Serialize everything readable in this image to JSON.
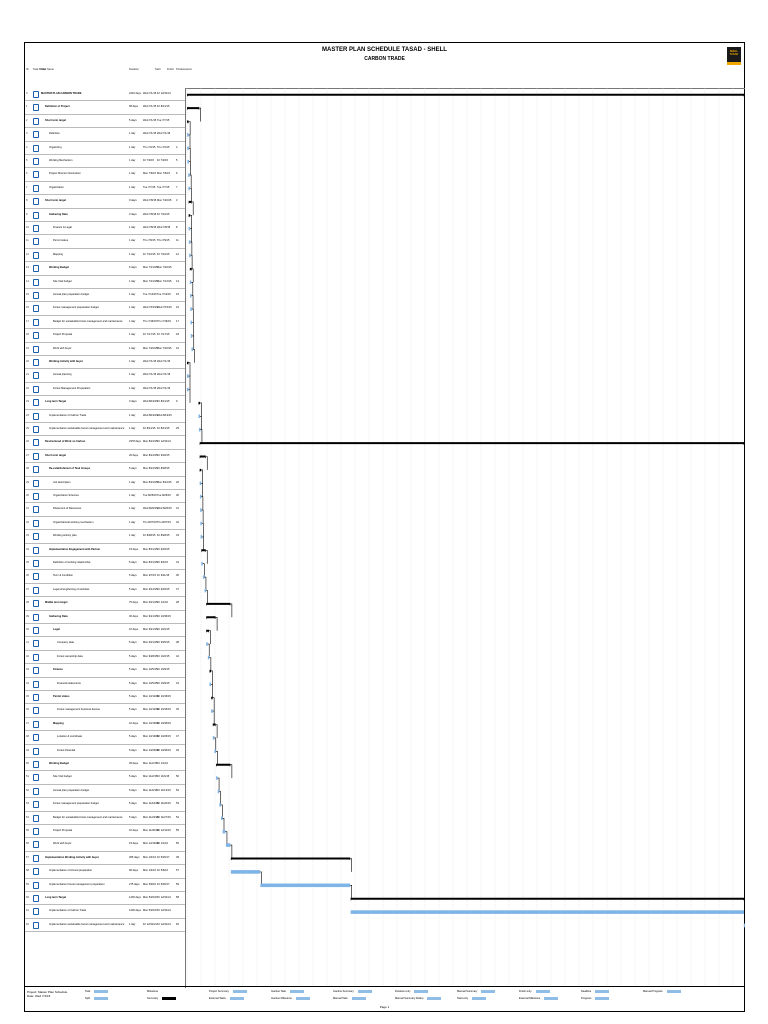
{
  "header": {
    "title": "MASTER PLAN SCHEDULE TASAD - SHELL",
    "subtitle": "CARBON TRADE",
    "logo_text": "SHELL TASAD"
  },
  "columns": {
    "id": "ID",
    "mode": "Task Mode",
    "name": "Task Name",
    "duration": "Duration",
    "start": "Start",
    "finish": "Finish",
    "pred": "Predecessors"
  },
  "tasks": [
    {
      "name": "MASTER PLAN CARBON TRADE",
      "level": 0,
      "bold": true,
      "dur": "2416 days",
      "start": "Wed 7/1/15",
      "finish": "Fri 12/31/21",
      "pred": ""
    },
    {
      "name": "Definition of Project",
      "level": 1,
      "bold": true,
      "dur": "38 days",
      "start": "Wed 7/1/15",
      "finish": "Fri 8/21/15",
      "pred": ""
    },
    {
      "name": "Short term target",
      "level": 1,
      "bold": true,
      "dur": "5 days",
      "start": "Wed 7/1/15",
      "finish": "Tue 7/7/15",
      "pred": ""
    },
    {
      "name": "Definition",
      "level": 2,
      "bold": false,
      "dur": "1 day",
      "start": "Wed 7/1/15",
      "finish": "Wed 7/1/15",
      "pred": ""
    },
    {
      "name": "Organizing",
      "level": 2,
      "bold": false,
      "dur": "1 day",
      "start": "Thu 7/2/15",
      "finish": "Thu 7/2/15",
      "pred": "4"
    },
    {
      "name": "Working Mechanism",
      "level": 2,
      "bold": false,
      "dur": "1 day",
      "start": "Fri 7/3/15",
      "finish": "Fri 7/3/15",
      "pred": "5"
    },
    {
      "name": "Project Director Nomination",
      "level": 2,
      "bold": false,
      "dur": "1 day",
      "start": "Mon 7/6/15",
      "finish": "Mon 7/6/15",
      "pred": "6"
    },
    {
      "name": "Organization",
      "level": 2,
      "bold": false,
      "dur": "1 day",
      "start": "Tue 7/7/15",
      "finish": "Tue 7/7/15",
      "pred": "7"
    },
    {
      "name": "Short term target",
      "level": 1,
      "bold": true,
      "dur": "9 days",
      "start": "Wed 7/8/15",
      "finish": "Mon 7/20/15",
      "pred": "3"
    },
    {
      "name": "Gathering Data",
      "level": 2,
      "bold": true,
      "dur": "3 days",
      "start": "Wed 7/8/15",
      "finish": "Fri 7/10/15",
      "pred": ""
    },
    {
      "name": "Finance & Legal",
      "level": 3,
      "bold": false,
      "dur": "1 day",
      "start": "Wed 7/8/15",
      "finish": "Wed 7/8/15",
      "pred": "8"
    },
    {
      "name": "Permit status",
      "level": 3,
      "bold": false,
      "dur": "1 day",
      "start": "Thu 7/9/15",
      "finish": "Thu 7/9/15",
      "pred": "11"
    },
    {
      "name": "Mapping",
      "level": 3,
      "bold": false,
      "dur": "1 day",
      "start": "Fri 7/10/15",
      "finish": "Fri 7/10/15",
      "pred": "12"
    },
    {
      "name": "Working Budget",
      "level": 2,
      "bold": true,
      "dur": "6 days",
      "start": "Mon 7/13/15",
      "finish": "Mon 7/20/15",
      "pred": ""
    },
    {
      "name": "Site Visit budget",
      "level": 3,
      "bold": false,
      "dur": "1 day",
      "start": "Mon 7/13/15",
      "finish": "Mon 7/13/15",
      "pred": "13"
    },
    {
      "name": "Annual plan preparation budget",
      "level": 3,
      "bold": false,
      "dur": "1 day",
      "start": "Tue 7/14/15",
      "finish": "Tue 7/14/15",
      "pred": "15"
    },
    {
      "name": "Forest management preparation budget",
      "level": 3,
      "bold": false,
      "dur": "1 day",
      "start": "Wed 7/15/15",
      "finish": "Wed 7/15/15",
      "pred": "16"
    },
    {
      "name": "Budget for sustainable forest management and maintenance",
      "level": 3,
      "bold": false,
      "dur": "1 day",
      "start": "Thu 7/16/15",
      "finish": "Thu 7/16/15",
      "pred": "17"
    },
    {
      "name": "Project Proposal",
      "level": 3,
      "bold": false,
      "dur": "1 day",
      "start": "Fri 7/17/15",
      "finish": "Fri 7/17/15",
      "pred": "18"
    },
    {
      "name": "Work with buyer",
      "level": 3,
      "bold": false,
      "dur": "1 day",
      "start": "Mon 7/20/15",
      "finish": "Mon 7/20/15",
      "pred": "19"
    },
    {
      "name": "Working Activity with buyer",
      "level": 2,
      "bold": true,
      "dur": "1 day",
      "start": "Wed 7/1/15",
      "finish": "Wed 7/1/15",
      "pred": ""
    },
    {
      "name": "Annual planning",
      "level": 3,
      "bold": false,
      "dur": "1 day",
      "start": "Wed 7/1/15",
      "finish": "Wed 7/1/15",
      "pred": ""
    },
    {
      "name": "Forest Management Preparation",
      "level": 3,
      "bold": false,
      "dur": "1 day",
      "start": "Wed 7/1/15",
      "finish": "Wed 7/1/15",
      "pred": ""
    },
    {
      "name": "Long term Target",
      "level": 1,
      "bold": true,
      "dur": "3 days",
      "start": "Wed 8/19/15",
      "finish": "Fri 8/21/15",
      "pred": "9"
    },
    {
      "name": "Implementation of Carbon Trade",
      "level": 2,
      "bold": false,
      "dur": "1 day",
      "start": "Wed 8/19/15",
      "finish": "Wed 8/19/15",
      "pred": ""
    },
    {
      "name": "Implementation sustainable forest management and maintenance",
      "level": 2,
      "bold": false,
      "dur": "1 day",
      "start": "Fri 8/21/15",
      "finish": "Fri 8/21/15",
      "pred": "25"
    },
    {
      "name": "Restructured of Work on Carbon",
      "level": 1,
      "bold": true,
      "dur": "2378 days",
      "start": "Mon 8/24/15",
      "finish": "Fri 12/31/21",
      "pred": ""
    },
    {
      "name": "Short term target",
      "level": 1,
      "bold": true,
      "dur": "20 days",
      "start": "Mon 8/24/15",
      "finish": "Fri 9/18/15",
      "pred": ""
    },
    {
      "name": "Re-establishment of Task Groups",
      "level": 2,
      "bold": true,
      "dur": "5 days",
      "start": "Mon 8/24/15",
      "finish": "Fri 8/28/15",
      "pred": ""
    },
    {
      "name": "Job description",
      "level": 3,
      "bold": false,
      "dur": "1 day",
      "start": "Mon 8/24/15",
      "finish": "Mon 8/24/15",
      "pred": "26"
    },
    {
      "name": "Organization Structure",
      "level": 3,
      "bold": false,
      "dur": "1 day",
      "start": "Tue 8/25/15",
      "finish": "Tue 8/25/15",
      "pred": "30"
    },
    {
      "name": "Placement of Resources",
      "level": 3,
      "bold": false,
      "dur": "1 day",
      "start": "Wed 8/26/15",
      "finish": "Wed 8/26/15",
      "pred": "31"
    },
    {
      "name": "Organizational working mechanism",
      "level": 3,
      "bold": false,
      "dur": "1 day",
      "start": "Thu 8/27/15",
      "finish": "Thu 8/27/15",
      "pred": "32"
    },
    {
      "name": "Working activity plan",
      "level": 3,
      "bold": false,
      "dur": "1 day",
      "start": "Fri 8/28/15",
      "finish": "Fri 8/28/15",
      "pred": "33"
    },
    {
      "name": "Implementation Engagement with Partner",
      "level": 2,
      "bold": true,
      "dur": "15 days",
      "start": "Mon 8/31/15",
      "finish": "Fri 9/18/15",
      "pred": ""
    },
    {
      "name": "Definition of working relationship",
      "level": 3,
      "bold": false,
      "dur": "5 days",
      "start": "Mon 8/31/15",
      "finish": "Fri 9/4/15",
      "pred": "34"
    },
    {
      "name": "Term & Condition",
      "level": 3,
      "bold": false,
      "dur": "5 days",
      "start": "Mon 9/7/15",
      "finish": "Fri 9/11/15",
      "pred": "36"
    },
    {
      "name": "Legal strengthening of activities",
      "level": 3,
      "bold": false,
      "dur": "5 days",
      "start": "Mon 9/14/15",
      "finish": "Fri 9/18/15",
      "pred": "37"
    },
    {
      "name": "Middle term target",
      "level": 1,
      "bold": true,
      "dur": "75 days",
      "start": "Mon 9/21/15",
      "finish": "Fri 1/1/16",
      "pred": "28"
    },
    {
      "name": "Gathering Data",
      "level": 2,
      "bold": true,
      "dur": "30 days",
      "start": "Mon 9/21/15",
      "finish": "Fri 10/30/15",
      "pred": ""
    },
    {
      "name": "Legal",
      "level": 3,
      "bold": true,
      "dur": "10 days",
      "start": "Mon 9/21/15",
      "finish": "Fri 10/2/15",
      "pred": ""
    },
    {
      "name": "Company data",
      "level": 4,
      "bold": false,
      "dur": "5 days",
      "start": "Mon 9/21/15",
      "finish": "Fri 9/25/15",
      "pred": "38"
    },
    {
      "name": "Forest ownership data",
      "level": 4,
      "bold": false,
      "dur": "5 days",
      "start": "Mon 9/28/15",
      "finish": "Fri 10/2/15",
      "pred": "42"
    },
    {
      "name": "Finance",
      "level": 3,
      "bold": true,
      "dur": "5 days",
      "start": "Mon 10/5/15",
      "finish": "Fri 10/9/15",
      "pred": ""
    },
    {
      "name": "Financial statements",
      "level": 4,
      "bold": false,
      "dur": "5 days",
      "start": "Mon 10/5/15",
      "finish": "Fri 10/9/15",
      "pred": "43"
    },
    {
      "name": "Permit status",
      "level": 3,
      "bold": true,
      "dur": "5 days",
      "start": "Mon 10/12/15",
      "finish": "Fri 10/16/15",
      "pred": ""
    },
    {
      "name": "Forest management business license",
      "level": 4,
      "bold": false,
      "dur": "5 days",
      "start": "Mon 10/12/15",
      "finish": "Fri 10/16/15",
      "pred": "45"
    },
    {
      "name": "Mapping",
      "level": 3,
      "bold": true,
      "dur": "10 days",
      "start": "Mon 10/19/15",
      "finish": "Fri 10/30/15",
      "pred": ""
    },
    {
      "name": "Location & coordinate",
      "level": 4,
      "bold": false,
      "dur": "5 days",
      "start": "Mon 10/19/15",
      "finish": "Fri 10/23/15",
      "pred": "47"
    },
    {
      "name": "Forest Potential",
      "level": 4,
      "bold": false,
      "dur": "5 days",
      "start": "Mon 10/26/15",
      "finish": "Fri 10/30/15",
      "pred": "49"
    },
    {
      "name": "Working Budget",
      "level": 2,
      "bold": true,
      "dur": "45 days",
      "start": "Mon 11/2/15",
      "finish": "Fri 1/1/16",
      "pred": ""
    },
    {
      "name": "Site Visit budget",
      "level": 3,
      "bold": false,
      "dur": "5 days",
      "start": "Mon 11/2/15",
      "finish": "Fri 11/6/15",
      "pred": "50"
    },
    {
      "name": "Annual plan preparation budget",
      "level": 3,
      "bold": false,
      "dur": "5 days",
      "start": "Mon 11/9/15",
      "finish": "Fri 11/13/15",
      "pred": "52"
    },
    {
      "name": "Forest management preparation budget",
      "level": 3,
      "bold": false,
      "dur": "5 days",
      "start": "Mon 11/16/15",
      "finish": "Fri 11/20/15",
      "pred": "53"
    },
    {
      "name": "Budget for sustainable forest management and maintenance",
      "level": 3,
      "bold": false,
      "dur": "5 days",
      "start": "Mon 11/23/15",
      "finish": "Fri 11/27/15",
      "pred": "54"
    },
    {
      "name": "Project Proposal",
      "level": 3,
      "bold": false,
      "dur": "10 days",
      "start": "Mon 11/30/15",
      "finish": "Fri 12/11/15",
      "pred": "55"
    },
    {
      "name": "Work with buyer",
      "level": 3,
      "bold": false,
      "dur": "15 days",
      "start": "Mon 12/14/15",
      "finish": "Fri 1/1/16",
      "pred": "56"
    },
    {
      "name": "Implementation Working Activity with buyer",
      "level": 1,
      "bold": true,
      "dur": "365 days",
      "start": "Mon 1/4/16",
      "finish": "Fri 5/26/17",
      "pred": "39"
    },
    {
      "name": "Implementation of Annual preparation",
      "level": 2,
      "bold": false,
      "dur": "90 days",
      "start": "Mon 1/4/16",
      "finish": "Fri 5/6/16",
      "pred": "57"
    },
    {
      "name": "Implementation Forest management preparation",
      "level": 2,
      "bold": false,
      "dur": "275 days",
      "start": "Mon 5/9/16",
      "finish": "Fri 5/26/17",
      "pred": "59"
    },
    {
      "name": "Long term Target",
      "level": 1,
      "bold": true,
      "dur": "1200 days",
      "start": "Mon 5/29/17",
      "finish": "Fri 12/31/21",
      "pred": "58"
    },
    {
      "name": "Implementation of Carbon Trade",
      "level": 2,
      "bold": false,
      "dur": "1200 days",
      "start": "Mon 5/29/17",
      "finish": "Fri 12/31/21",
      "pred": ""
    },
    {
      "name": "Implementation sustainable forest management and maintenance",
      "level": 2,
      "bold": false,
      "dur": "1 day",
      "start": "Fri 12/31/21",
      "finish": "Fri 12/31/21",
      "pred": "62"
    }
  ],
  "footer": {
    "project_line1": "Project: Master Plan Schedule",
    "project_line2": "Date: Wed 7/1/15",
    "legend": [
      {
        "label": "Task",
        "type": "task"
      },
      {
        "label": "Split",
        "type": "split"
      },
      {
        "label": "Milestone",
        "type": "milestone"
      },
      {
        "label": "Summary",
        "type": "summary"
      },
      {
        "label": "Project Summary",
        "type": "psummary"
      },
      {
        "label": "External Tasks",
        "type": "external"
      },
      {
        "label": "Inactive Task",
        "type": "inactive"
      },
      {
        "label": "Inactive Milestone",
        "type": "imilestone"
      },
      {
        "label": "Inactive Summary",
        "type": "isummary"
      },
      {
        "label": "Manual Task",
        "type": "manual"
      },
      {
        "label": "Duration-only",
        "type": "duronly"
      },
      {
        "label": "Manual Summary Rollup",
        "type": "msrollup"
      },
      {
        "label": "Manual Summary",
        "type": "msummary"
      },
      {
        "label": "Start-only",
        "type": "startonly"
      },
      {
        "label": "Finish-only",
        "type": "finishonly"
      },
      {
        "label": "External Milestone",
        "type": "extmilestone"
      },
      {
        "label": "Deadline",
        "type": "deadline"
      },
      {
        "label": "Progress",
        "type": "progress"
      },
      {
        "label": "Manual Progress",
        "type": "mprogress"
      }
    ],
    "page": "Page 1"
  },
  "colors": {
    "task": "#7fb4e6",
    "summary": "#000000",
    "link": "#000000",
    "accent": "#f0a800"
  }
}
